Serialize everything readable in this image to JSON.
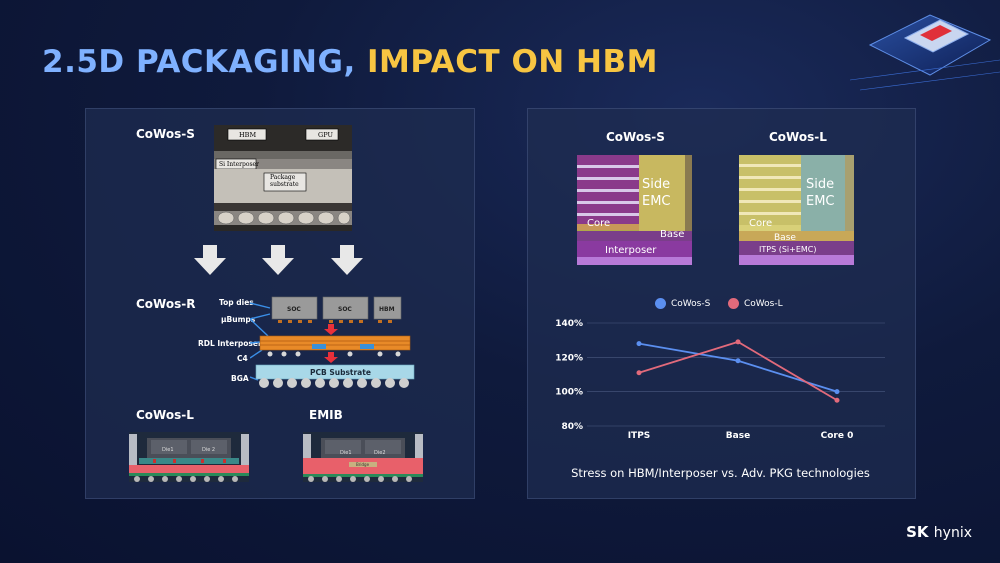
{
  "title": {
    "part1": "2.5D PACKAGING,",
    "part2": "IMPACT ON HBM"
  },
  "left": {
    "cowos_s": {
      "label": "CoWos-S",
      "hbm": "HBM",
      "gpu": "GPU",
      "si_interposer": "Si Interposer",
      "package_substrate_1": "Package",
      "package_substrate_2": "substrate"
    },
    "cowos_r": {
      "label": "CoWos-R",
      "top_dies": "Top dies",
      "ubumps": "μBumps",
      "rdl": "RDL Interposer",
      "c4": "C4",
      "bga": "BGA",
      "soc1": "SOC",
      "soc2": "SOC",
      "hbm": "HBM",
      "pcb": "PCB Substrate"
    },
    "cowos_l": {
      "label": "CoWos-L",
      "die1": "Die1",
      "die2": "Die 2"
    },
    "emib": {
      "label": "EMIB",
      "die1": "Die1",
      "die2": "Die2",
      "bridge": "Bridge"
    }
  },
  "right": {
    "cowos_s": {
      "label": "CoWos-S",
      "side": "Side",
      "emc": "EMC",
      "core": "Core",
      "base": "Base",
      "interposer": "Interposer"
    },
    "cowos_l": {
      "label": "CoWos-L",
      "side": "Side",
      "emc": "EMC",
      "core": "Core",
      "base": "Base",
      "itps": "ITPS (Si+EMC)"
    }
  },
  "chart_data": {
    "type": "line",
    "categories": [
      "ITPS",
      "Base",
      "Core 0"
    ],
    "series": [
      {
        "name": "CoWos-S",
        "color": "#5b8ff0",
        "values": [
          128,
          118,
          100
        ]
      },
      {
        "name": "CoWos-L",
        "color": "#e26a7b",
        "values": [
          111,
          129,
          95
        ]
      }
    ],
    "yticks": [
      "80%",
      "100%",
      "120%",
      "140%"
    ],
    "ylim": [
      80,
      140
    ],
    "grid": true,
    "legend": "top"
  },
  "caption": "Stress on HBM/Interposer vs. Adv. PKG technologies",
  "brand": {
    "sk": "SK",
    "hynix": "hynix"
  }
}
